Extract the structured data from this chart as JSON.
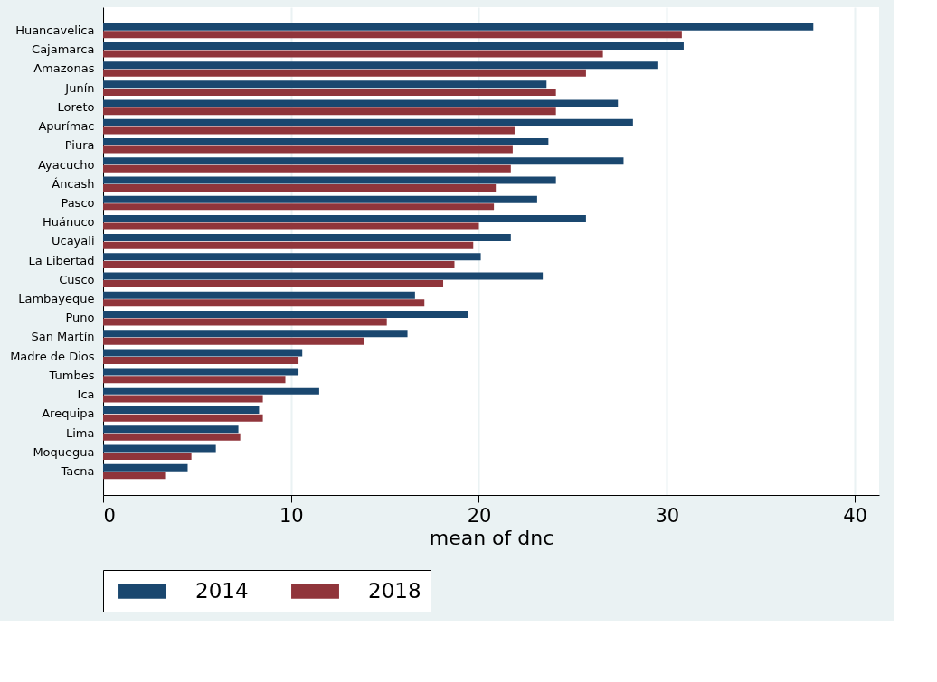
{
  "chart_data": {
    "type": "bar",
    "orientation": "horizontal",
    "xlabel": "mean of dnc",
    "categories": [
      "Huancavelica",
      "Cajamarca",
      "Amazonas",
      "Junín",
      "Loreto",
      "Apurímac",
      "Piura",
      "Ayacucho",
      "Áncash",
      "Pasco",
      "Huánuco",
      "Ucayali",
      "La Libertad",
      "Cusco",
      "Lambayeque",
      "Puno",
      "San Martín",
      "Madre de Dios",
      "Tumbes",
      "Ica",
      "Arequipa",
      "Lima",
      "Moquegua",
      "Tacna"
    ],
    "series": [
      {
        "name": "2014",
        "color": "#1a476f",
        "values": [
          37.8,
          30.9,
          29.5,
          23.6,
          27.4,
          28.2,
          23.7,
          27.7,
          24.1,
          23.1,
          25.7,
          21.7,
          20.1,
          23.4,
          16.6,
          19.4,
          16.2,
          10.6,
          10.4,
          11.5,
          8.3,
          7.2,
          6.0,
          4.5
        ]
      },
      {
        "name": "2018",
        "color": "#90353b",
        "values": [
          30.8,
          26.6,
          25.7,
          24.1,
          24.1,
          21.9,
          21.8,
          21.7,
          20.9,
          20.8,
          20.0,
          19.7,
          18.7,
          18.1,
          17.1,
          15.1,
          13.9,
          10.4,
          9.7,
          8.5,
          8.5,
          7.3,
          4.7,
          3.3
        ]
      }
    ],
    "xlim": [
      0,
      41.3
    ],
    "xticks": [
      0,
      10,
      20,
      30,
      40
    ],
    "grid": "x",
    "legend": "bottom"
  }
}
